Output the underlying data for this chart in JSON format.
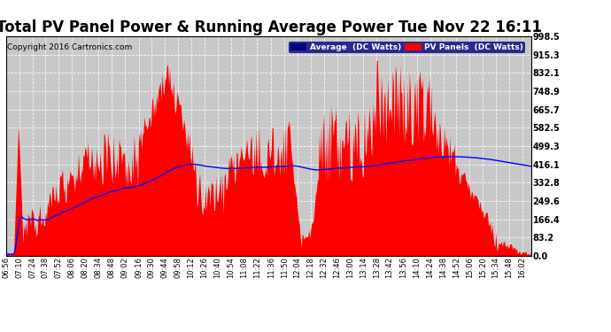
{
  "title": "Total PV Panel Power & Running Average Power Tue Nov 22 16:11",
  "copyright": "Copyright 2016 Cartronics.com",
  "legend_avg": "Average  (DC Watts)",
  "legend_pv": "PV Panels  (DC Watts)",
  "ylabel_right_ticks": [
    0.0,
    83.2,
    166.4,
    249.6,
    332.8,
    416.1,
    499.3,
    582.5,
    665.7,
    748.9,
    832.1,
    915.3,
    998.5
  ],
  "ymax": 998.5,
  "ymin": 0.0,
  "bg_color": "#ffffff",
  "plot_bg_color": "#c8c8c8",
  "grid_color": "#ffffff",
  "bar_color": "#ff0000",
  "line_color": "#0000ff",
  "title_fontsize": 12,
  "x_tick_labels": [
    "06:56",
    "07:10",
    "07:24",
    "07:38",
    "07:52",
    "08:06",
    "08:20",
    "08:34",
    "08:48",
    "09:02",
    "09:16",
    "09:30",
    "09:44",
    "09:58",
    "10:12",
    "10:26",
    "10:40",
    "10:54",
    "11:08",
    "11:22",
    "11:36",
    "11:50",
    "12:04",
    "12:18",
    "12:32",
    "12:46",
    "13:00",
    "13:14",
    "13:28",
    "13:42",
    "13:56",
    "14:10",
    "14:24",
    "14:38",
    "14:52",
    "15:06",
    "15:20",
    "15:34",
    "15:48",
    "16:02"
  ],
  "num_points": 560
}
